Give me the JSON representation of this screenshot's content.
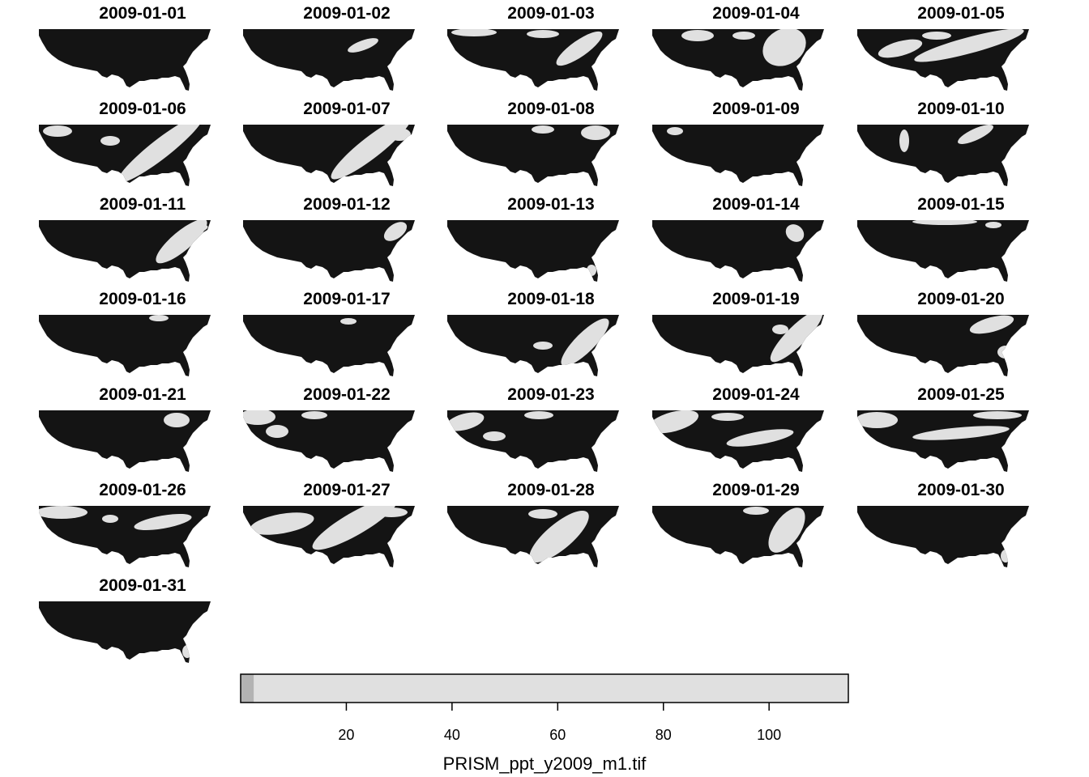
{
  "chart_data": {
    "type": "heatmap",
    "title": "",
    "panel_titles": [
      "2009-01-01",
      "2009-01-02",
      "2009-01-03",
      "2009-01-04",
      "2009-01-05",
      "2009-01-06",
      "2009-01-07",
      "2009-01-08",
      "2009-01-09",
      "2009-01-10",
      "2009-01-11",
      "2009-01-12",
      "2009-01-13",
      "2009-01-14",
      "2009-01-15",
      "2009-01-16",
      "2009-01-17",
      "2009-01-18",
      "2009-01-19",
      "2009-01-20",
      "2009-01-21",
      "2009-01-22",
      "2009-01-23",
      "2009-01-24",
      "2009-01-25",
      "2009-01-26",
      "2009-01-27",
      "2009-01-28",
      "2009-01-29",
      "2009-01-30",
      "2009-01-31"
    ],
    "grid": {
      "ncol": 5,
      "nrow": 7
    },
    "legend": {
      "title": "PRISM_ppt_y2009_m1.tif",
      "range": [
        0,
        115
      ],
      "ticks": [
        20,
        40,
        60,
        80,
        100
      ],
      "tick_labels": [
        "20",
        "40",
        "60",
        "80",
        "100"
      ],
      "breaks": [
        0,
        2.5,
        115
      ],
      "colors": [
        "#b3b3b3",
        "#e0e0e0"
      ]
    },
    "colors": {
      "dry": "#141414",
      "wet": "#e0e0e0",
      "wet_edge": "#cfcfcf"
    }
  }
}
